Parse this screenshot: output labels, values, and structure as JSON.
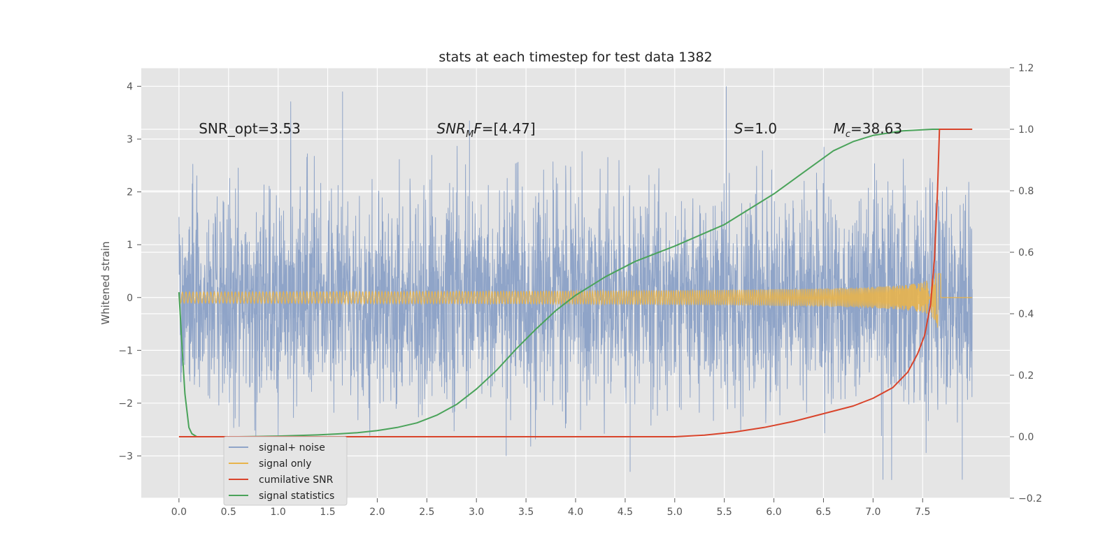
{
  "chart_data": {
    "type": "line",
    "title": "stats at each timestep for test data 1382",
    "ylabel": "Whitened strain",
    "xlabel": "",
    "xlim": [
      -0.38,
      8.38
    ],
    "ylim": [
      -3.8,
      4.35
    ],
    "y2lim": [
      -0.2,
      1.2
    ],
    "x_ticks": [
      "0.0",
      "0.5",
      "1.0",
      "1.5",
      "2.0",
      "2.5",
      "3.0",
      "3.5",
      "4.0",
      "4.5",
      "5.0",
      "5.5",
      "6.0",
      "6.5",
      "7.0",
      "7.5"
    ],
    "y_ticks": [
      "4",
      "3",
      "2",
      "1",
      "0",
      "−1",
      "−2",
      "−3"
    ],
    "y_tick_values": [
      4,
      3,
      2,
      1,
      0,
      -1,
      -2,
      -3
    ],
    "y2_ticks": [
      "1.2",
      "1.0",
      "0.8",
      "0.6",
      "0.4",
      "0.2",
      "0.0",
      "−0.2"
    ],
    "y2_tick_values": [
      1.2,
      1.0,
      0.8,
      0.6,
      0.4,
      0.2,
      0.0,
      -0.2
    ],
    "grid": true,
    "legend_placement": "lower-left",
    "annotations": [
      {
        "text": "SNR_opt=3.53",
        "x": 0.2,
        "y": 3.2
      },
      {
        "text": "SNR_MF=[4.47]",
        "x": 2.6,
        "y": 3.2,
        "math": "snrmf"
      },
      {
        "text": "S=1.0",
        "x": 5.6,
        "y": 3.2,
        "math": "s"
      },
      {
        "text": "M_c=38.63",
        "x": 6.6,
        "y": 3.2,
        "math": "mc"
      }
    ],
    "series": [
      {
        "name": "signal+ noise",
        "color": "#8fa4c8",
        "axis": "left",
        "kind": "noise",
        "x_range": [
          0,
          8.0
        ],
        "y_envelope": [
          -3.45,
          4.0
        ],
        "peaks": [
          [
            1.65,
            3.9
          ],
          [
            5.52,
            4.0
          ],
          [
            2.93,
            3.35
          ],
          [
            4.55,
            -3.3
          ],
          [
            7.1,
            -3.45
          ],
          [
            7.9,
            -3.45
          ],
          [
            3.3,
            -3.0
          ]
        ]
      },
      {
        "name": "signal only",
        "color": "#e8b44c",
        "axis": "left",
        "kind": "chirp",
        "x_range": [
          0,
          8.0
        ],
        "peak_x": 7.66,
        "peak_amplitude": 0.8
      },
      {
        "name": "cumilative SNR",
        "color": "#d9442b",
        "axis": "right",
        "x": [
          0,
          5.0,
          5.3,
          5.6,
          5.9,
          6.2,
          6.5,
          6.8,
          7.0,
          7.2,
          7.35,
          7.45,
          7.52,
          7.58,
          7.62,
          7.65,
          7.67,
          7.7,
          8.0
        ],
        "y": [
          0.0,
          0.0,
          0.005,
          0.015,
          0.03,
          0.05,
          0.075,
          0.1,
          0.125,
          0.16,
          0.21,
          0.27,
          0.33,
          0.43,
          0.58,
          0.8,
          1.0,
          1.0,
          1.0
        ]
      },
      {
        "name": "signal statistics",
        "color": "#4aa35a",
        "axis": "right",
        "x": [
          0.0,
          0.03,
          0.06,
          0.1,
          0.13,
          0.18,
          0.25,
          0.4,
          0.6,
          0.8,
          1.0,
          1.2,
          1.4,
          1.6,
          1.8,
          2.0,
          2.2,
          2.4,
          2.6,
          2.8,
          3.0,
          3.2,
          3.4,
          3.6,
          3.8,
          4.0,
          4.3,
          4.6,
          5.0,
          5.5,
          6.0,
          6.3,
          6.6,
          6.8,
          7.0,
          7.3,
          7.6,
          8.0
        ],
        "y": [
          0.47,
          0.3,
          0.14,
          0.03,
          0.01,
          0.0,
          0.0,
          0.0,
          0.0,
          0.001,
          0.002,
          0.004,
          0.006,
          0.009,
          0.013,
          0.02,
          0.03,
          0.045,
          0.07,
          0.105,
          0.155,
          0.215,
          0.285,
          0.35,
          0.41,
          0.46,
          0.52,
          0.57,
          0.62,
          0.69,
          0.79,
          0.86,
          0.93,
          0.96,
          0.98,
          0.995,
          1.0,
          1.0
        ]
      }
    ]
  }
}
